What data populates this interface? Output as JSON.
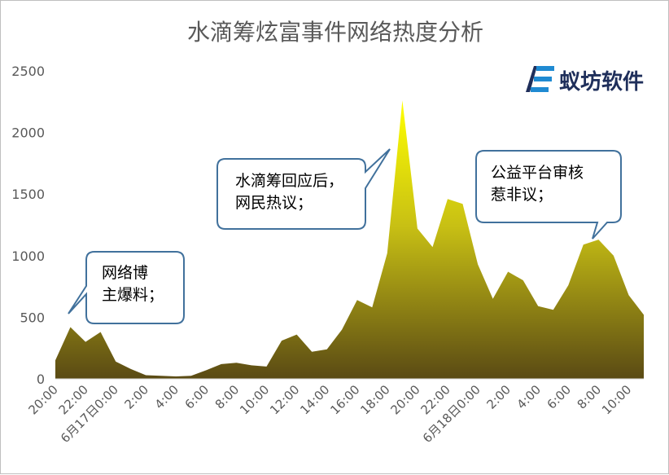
{
  "chart_data": {
    "type": "area",
    "title": "水滴筹炫富事件网络热度分析",
    "xlabel": "",
    "ylabel": "",
    "ylim": [
      0,
      2500
    ],
    "yticks": [
      0,
      500,
      1000,
      1500,
      2000,
      2500
    ],
    "grid": false,
    "legend": "none",
    "x_tick_labels": [
      "20:00",
      "22:00",
      "6月17日0:00",
      "2:00",
      "4:00",
      "6:00",
      "8:00",
      "10:00",
      "12:00",
      "14:00",
      "16:00",
      "18:00",
      "20:00",
      "22:00",
      "6月18日0:00",
      "2:00",
      "4:00",
      "6:00",
      "8:00",
      "10:00"
    ],
    "x": [
      "20:00",
      "21:00",
      "22:00",
      "23:00",
      "0:00",
      "1:00",
      "2:00",
      "3:00",
      "4:00",
      "5:00",
      "6:00",
      "7:00",
      "8:00",
      "9:00",
      "10:00",
      "11:00",
      "12:00",
      "13:00",
      "14:00",
      "15:00",
      "16:00",
      "17:00",
      "18:00",
      "19:00",
      "20:00",
      "21:00",
      "22:00",
      "23:00",
      "0:00",
      "1:00",
      "2:00",
      "3:00",
      "4:00",
      "5:00",
      "6:00",
      "7:00",
      "8:00",
      "9:00",
      "10:00",
      "11:00"
    ],
    "series": [
      {
        "values": [
          150,
          420,
          300,
          380,
          140,
          80,
          30,
          25,
          20,
          25,
          70,
          120,
          130,
          110,
          100,
          310,
          360,
          220,
          240,
          400,
          640,
          580,
          1020,
          2260,
          1220,
          1070,
          1460,
          1420,
          930,
          650,
          870,
          800,
          590,
          560,
          760,
          1090,
          1130,
          1000,
          680,
          520
        ]
      }
    ],
    "annotations": [
      {
        "text": "网络博\n主爆料；",
        "x": "21:00"
      },
      {
        "text": "水滴筹回应后，\n网民热议；",
        "x": "19:00"
      },
      {
        "text": "公益平台审核\n惹非议；",
        "x": "7:00"
      }
    ]
  },
  "logo": {
    "text": "蚁坊软件",
    "color": "#1f2f5b"
  },
  "colors": {
    "area_top": "#ffff00",
    "area_bottom": "#5a4a14",
    "callout_stroke": "#41719c",
    "axis": "#d9d9d9",
    "title": "#595959",
    "label": "#595959"
  }
}
